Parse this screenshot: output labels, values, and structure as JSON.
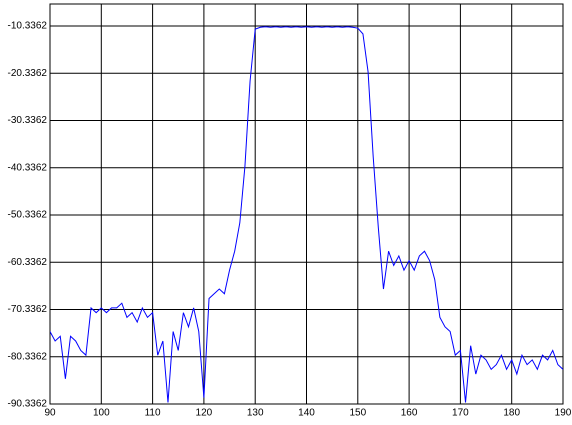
{
  "chart_data": {
    "type": "line",
    "x": [
      90,
      91,
      92,
      93,
      94,
      95,
      96,
      97,
      98,
      99,
      100,
      101,
      102,
      103,
      104,
      105,
      106,
      107,
      108,
      109,
      110,
      111,
      112,
      113,
      114,
      115,
      116,
      117,
      118,
      119,
      120,
      121,
      122,
      123,
      124,
      125,
      126,
      127,
      128,
      129,
      130,
      131,
      132,
      133,
      134,
      135,
      136,
      137,
      138,
      139,
      140,
      141,
      142,
      143,
      144,
      145,
      146,
      147,
      148,
      149,
      150,
      151,
      152,
      153,
      154,
      155,
      156,
      157,
      158,
      159,
      160,
      161,
      162,
      163,
      164,
      165,
      166,
      167,
      168,
      169,
      170,
      171,
      172,
      173,
      174,
      175,
      176,
      177,
      178,
      179,
      180,
      181,
      182,
      183,
      184,
      185,
      186,
      187,
      188,
      189,
      190
    ],
    "values": [
      -75,
      -77,
      -76,
      -85,
      -76,
      -77,
      -79,
      -80,
      -70,
      -71,
      -70,
      -71,
      -70,
      -70,
      -69,
      -72,
      -71,
      -73,
      -70,
      -72,
      -71,
      -80,
      -77,
      -90,
      -75,
      -79,
      -71,
      -74,
      -70,
      -75,
      -89,
      -68,
      -67,
      -66,
      -67,
      -62,
      -58,
      -52,
      -40,
      -22,
      -11,
      -10.6,
      -10.5,
      -10.6,
      -10.5,
      -10.6,
      -10.5,
      -10.6,
      -10.5,
      -10.6,
      -10.5,
      -10.6,
      -10.5,
      -10.6,
      -10.5,
      -10.6,
      -10.5,
      -10.6,
      -10.5,
      -10.6,
      -10.8,
      -12,
      -20,
      -38,
      -53,
      -66,
      -58,
      -61,
      -59,
      -62,
      -60,
      -62,
      -59,
      -58,
      -60,
      -64,
      -72,
      -74,
      -75,
      -80,
      -79,
      -90,
      -78,
      -84,
      -80,
      -81,
      -83,
      -82,
      -80,
      -83,
      -81,
      -84,
      -80,
      -82,
      -81,
      -83,
      -80,
      -81,
      -79,
      -82,
      -83
    ],
    "color": "#0000ff",
    "xlim": [
      90,
      190
    ],
    "xticks": [
      90,
      100,
      110,
      120,
      130,
      140,
      150,
      160,
      170,
      180,
      190
    ],
    "ylim": [
      -90.3362,
      -5.68
    ],
    "yticks": [
      -90.3362,
      -80.3362,
      -70.3362,
      -60.3362,
      -50.3362,
      -40.3362,
      -30.3362,
      -20.3362,
      -10.3362
    ],
    "grid": true
  }
}
